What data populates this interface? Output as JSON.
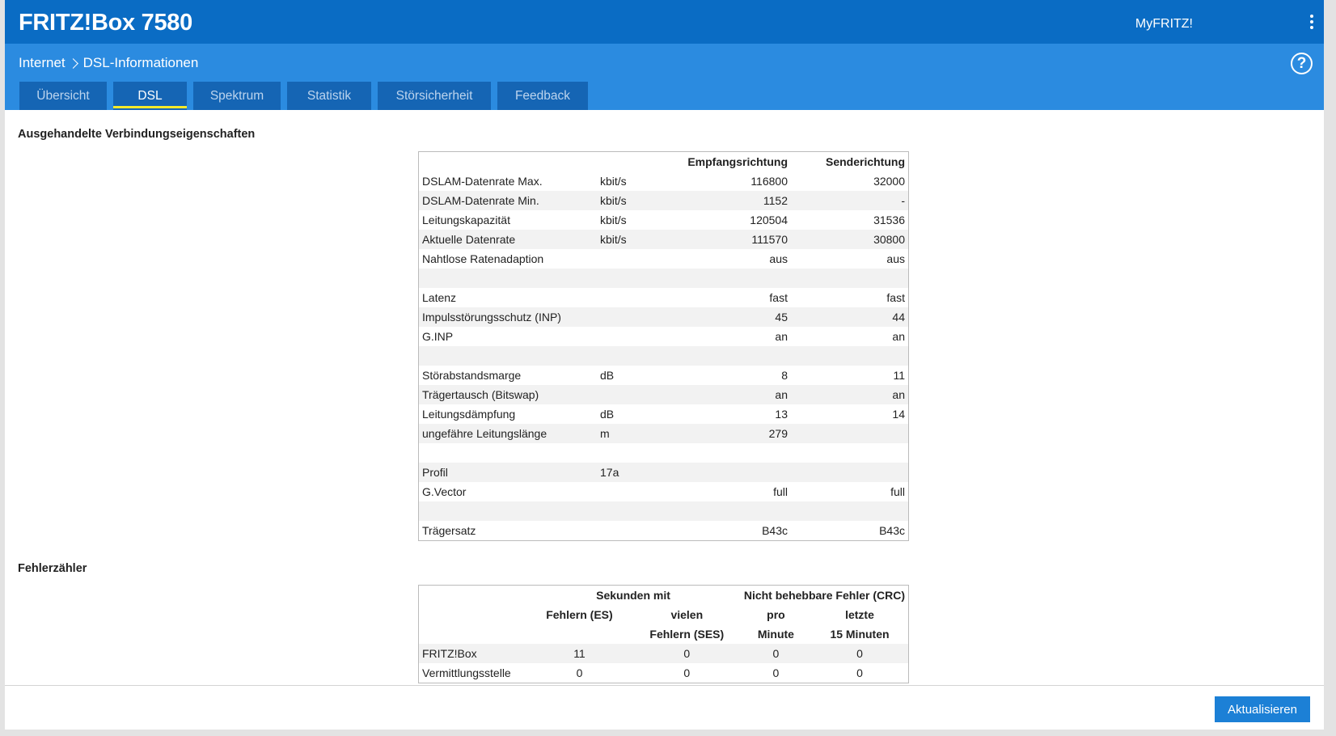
{
  "header": {
    "brand": "FRITZ!Box 7580",
    "myfritz": "MyFRITZ!"
  },
  "breadcrumb": {
    "parent": "Internet",
    "current": "DSL-Informationen"
  },
  "tabs": [
    {
      "label": "Übersicht",
      "active": false
    },
    {
      "label": "DSL",
      "active": true
    },
    {
      "label": "Spektrum",
      "active": false
    },
    {
      "label": "Statistik",
      "active": false
    },
    {
      "label": "Störsicherheit",
      "active": false
    },
    {
      "label": "Feedback",
      "active": false
    }
  ],
  "connection": {
    "title": "Ausgehandelte Verbindungseigenschaften",
    "col_down": "Empfangsrichtung",
    "col_up": "Senderichtung",
    "rows": [
      {
        "label": "DSLAM-Datenrate Max.",
        "unit": "kbit/s",
        "down": "116800",
        "up": "32000"
      },
      {
        "label": "DSLAM-Datenrate Min.",
        "unit": "kbit/s",
        "down": "1152",
        "up": "-"
      },
      {
        "label": "Leitungskapazität",
        "unit": "kbit/s",
        "down": "120504",
        "up": "31536"
      },
      {
        "label": "Aktuelle Datenrate",
        "unit": "kbit/s",
        "down": "111570",
        "up": "30800"
      },
      {
        "label": "Nahtlose Ratenadaption",
        "unit": "",
        "down": "aus",
        "up": "aus"
      },
      {
        "label": "",
        "unit": "",
        "down": "",
        "up": ""
      },
      {
        "label": "Latenz",
        "unit": "",
        "down": "fast",
        "up": "fast"
      },
      {
        "label": "Impulsstörungsschutz (INP)",
        "unit": "",
        "down": "45",
        "up": "44"
      },
      {
        "label": "G.INP",
        "unit": "",
        "down": "an",
        "up": "an"
      },
      {
        "label": "",
        "unit": "",
        "down": "",
        "up": ""
      },
      {
        "label": "Störabstandsmarge",
        "unit": "dB",
        "down": "8",
        "up": "11"
      },
      {
        "label": "Trägertausch (Bitswap)",
        "unit": "",
        "down": "an",
        "up": "an"
      },
      {
        "label": "Leitungsdämpfung",
        "unit": "dB",
        "down": "13",
        "up": "14"
      },
      {
        "label": "ungefähre Leitungslänge",
        "unit": "m",
        "down": "279",
        "up": ""
      },
      {
        "label": "",
        "unit": "",
        "down": "",
        "up": ""
      },
      {
        "label": "Profil",
        "unit": "17a",
        "down": "",
        "up": ""
      },
      {
        "label": "G.Vector",
        "unit": "",
        "down": "full",
        "up": "full"
      },
      {
        "label": "",
        "unit": "",
        "down": "",
        "up": ""
      },
      {
        "label": "Trägersatz",
        "unit": "",
        "down": "B43c",
        "up": "B43c"
      }
    ]
  },
  "errors": {
    "title": "Fehlerzähler",
    "group1": "Sekunden mit",
    "group2": "Nicht behebbare Fehler (CRC)",
    "col_es": "Fehlern (ES)",
    "col_ses_1": "vielen",
    "col_ses_2": "Fehlern (SES)",
    "col_pm_1": "pro",
    "col_pm_2": "Minute",
    "col_15_1": "letzte",
    "col_15_2": "15 Minuten",
    "rows": [
      {
        "label": "FRITZ!Box",
        "es": "11",
        "ses": "0",
        "pm": "0",
        "m15": "0"
      },
      {
        "label": "Vermittlungsstelle",
        "es": "0",
        "ses": "0",
        "pm": "0",
        "m15": "0"
      }
    ]
  },
  "footer": {
    "refresh_label": "Aktualisieren"
  }
}
